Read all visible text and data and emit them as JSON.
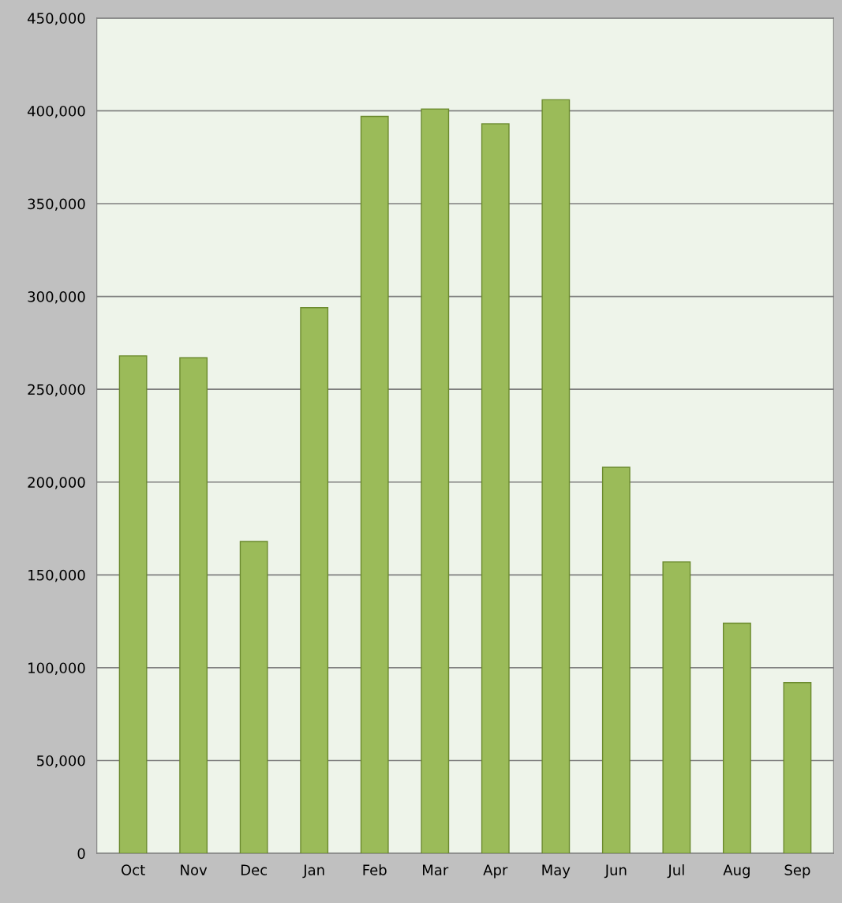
{
  "chart_data": {
    "type": "bar",
    "categories": [
      "Oct",
      "Nov",
      "Dec",
      "Jan",
      "Feb",
      "Mar",
      "Apr",
      "May",
      "Jun",
      "Jul",
      "Aug",
      "Sep"
    ],
    "values": [
      268000,
      267000,
      168000,
      294000,
      397000,
      401000,
      393000,
      406000,
      208000,
      157000,
      124000,
      92000
    ],
    "color": "#9bbb59",
    "ylim": [
      0,
      450000
    ],
    "yticks": [
      {
        "value": 0,
        "label": "0"
      },
      {
        "value": 50000,
        "label": "50,000"
      },
      {
        "value": 100000,
        "label": "100,000"
      },
      {
        "value": 150000,
        "label": "150,000"
      },
      {
        "value": 200000,
        "label": "200,000"
      },
      {
        "value": 250000,
        "label": "250,000"
      },
      {
        "value": 300000,
        "label": "300,000"
      },
      {
        "value": 350000,
        "label": "350,000"
      },
      {
        "value": 400000,
        "label": "400,000"
      },
      {
        "value": 450000,
        "label": "450,000"
      }
    ],
    "grid": "y"
  }
}
